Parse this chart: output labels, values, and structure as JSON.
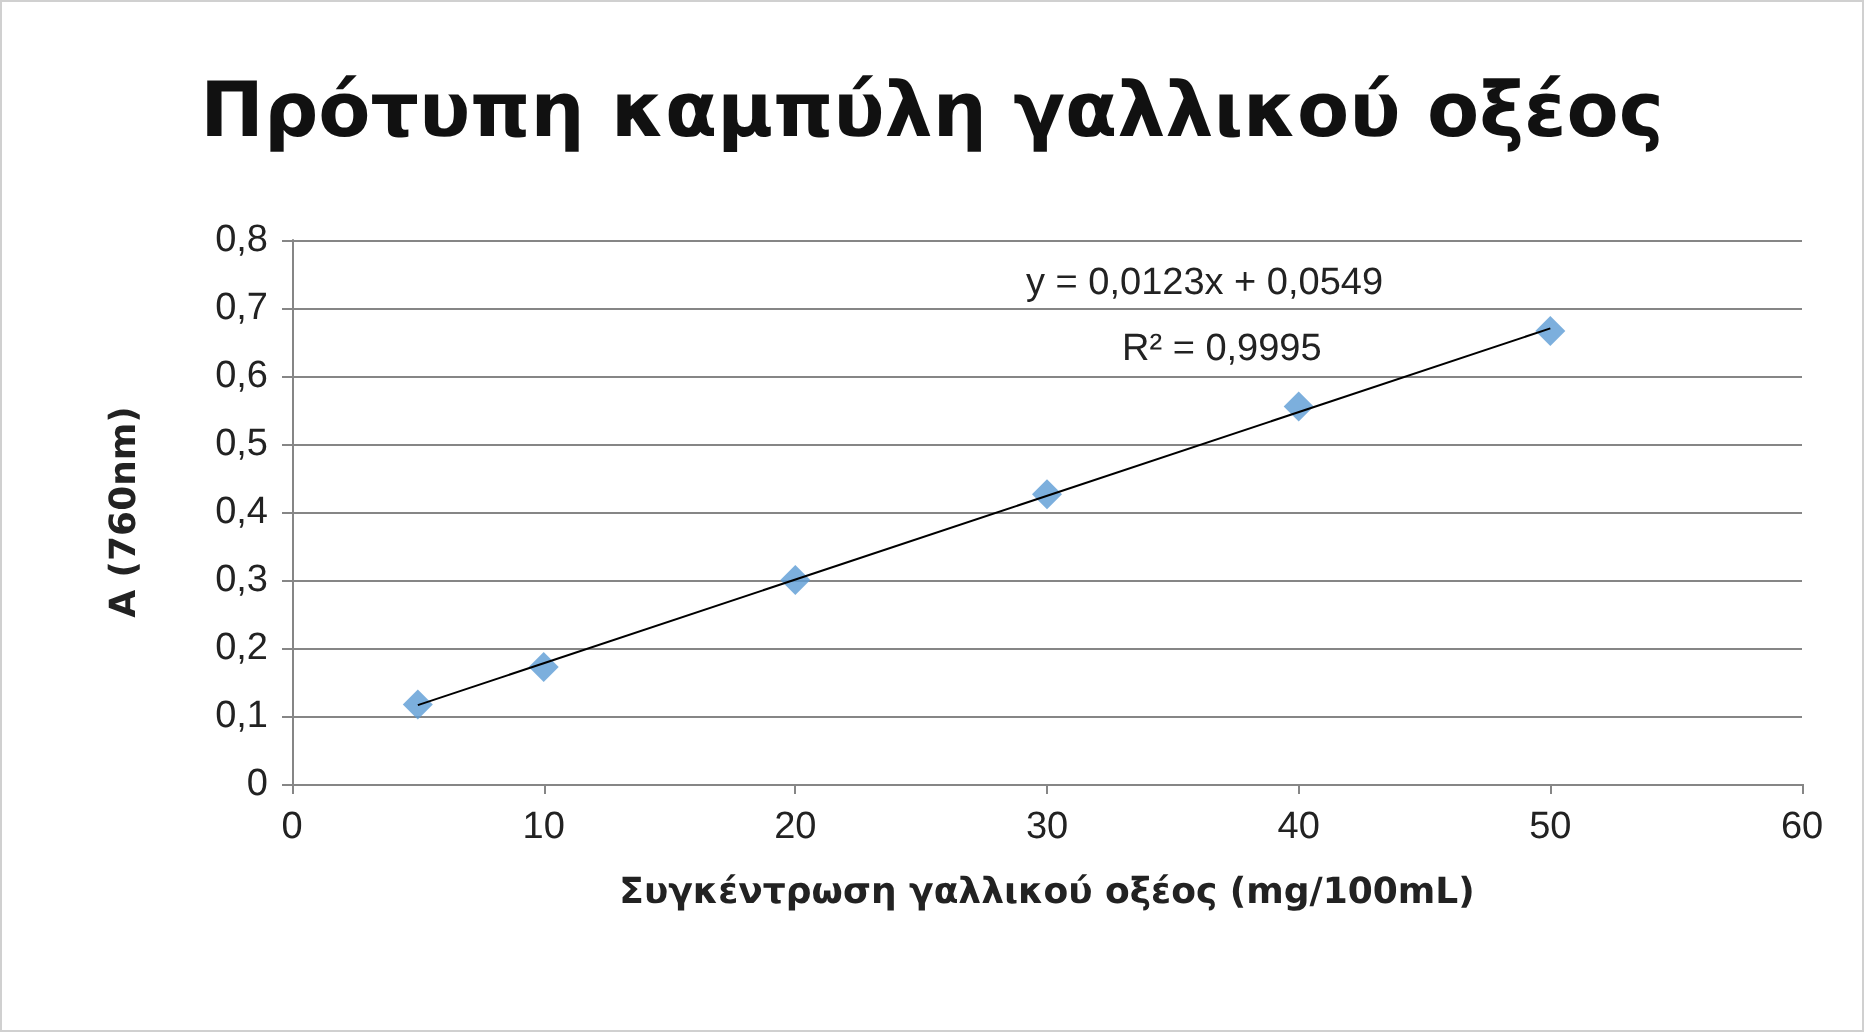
{
  "chart_data": {
    "type": "scatter",
    "title": "Πρότυπη καμπύλη γαλλικού οξέος",
    "xlabel": "Συγκέντρωση γαλλικού οξέος (mg/100mL)",
    "ylabel": "A (760nm)",
    "x": [
      5,
      10,
      20,
      30,
      40,
      50
    ],
    "series": [
      {
        "color": "#5b9bd5",
        "values": [
          0.117,
          0.172,
          0.3,
          0.426,
          0.555,
          0.666
        ]
      },
      {
        "type": "line",
        "x": [
          5,
          50
        ],
        "color": "#000000",
        "marker": "none",
        "values": [
          0.116,
          0.67
        ]
      }
    ],
    "xlim": [
      0,
      60
    ],
    "xticks": [
      0,
      10,
      20,
      30,
      40,
      50,
      60
    ],
    "ylim": [
      0,
      0.8
    ],
    "yticks": [
      0,
      {
        "value": 0.1,
        "label": "0,1"
      },
      {
        "value": 0.2,
        "label": "0,2"
      },
      {
        "value": 0.3,
        "label": "0,3"
      },
      {
        "value": 0.4,
        "label": "0,4"
      },
      {
        "value": 0.5,
        "label": "0,5"
      },
      {
        "value": 0.6,
        "label": "0,6"
      },
      {
        "value": 0.7,
        "label": "0,7"
      },
      {
        "value": 0.8,
        "label": "0,8"
      }
    ],
    "grid": "y",
    "marker": "diamond",
    "line_style": "solid",
    "annotations": [
      "y = 0,0123x + 0,0549",
      "R² = 0,9995"
    ]
  }
}
